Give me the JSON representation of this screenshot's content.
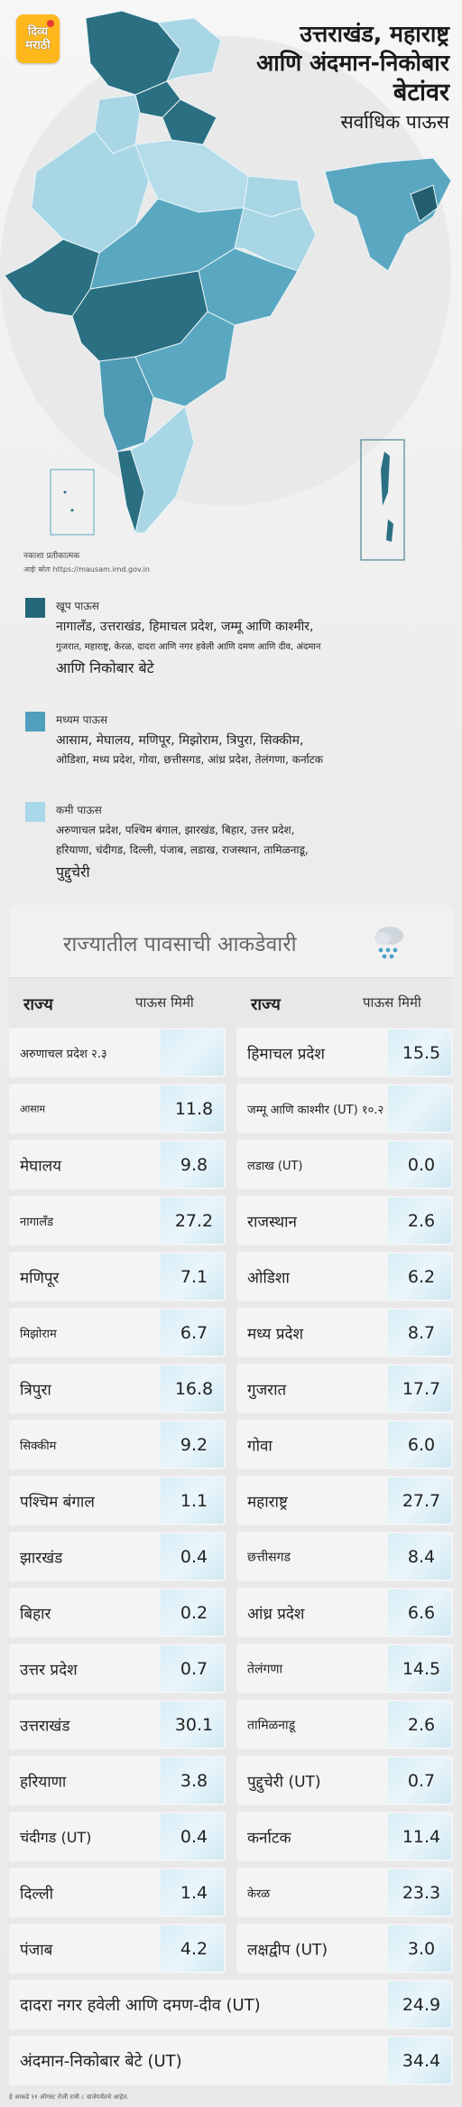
{
  "logo": {
    "line1": "दिव्य",
    "line2": "मराठी"
  },
  "header": {
    "title_line1": "उत्तराखंड, महाराष्ट्र",
    "title_line2": "आणि अंदमान-निकोबार",
    "title_line3": "बेटांवर",
    "subtitle": "सर्वाधिक पाऊस"
  },
  "map": {
    "note": "नकाशा प्रतीकात्मक",
    "source": "आईः स्रोतः https://mausam.imd.gov.in",
    "colors": {
      "heavy": "#2a6f82",
      "medium": "#5aa7c1",
      "low": "#a9d6e5",
      "heavy_dark": "#245f70"
    }
  },
  "legend": [
    {
      "name": "खूप पाऊस",
      "color": "#236779",
      "lines": [
        "नागालँड, उत्तराखंड, हिमाचल प्रदेश, जम्मू आणि काश्मीर,",
        "गुजरात, महाराष्ट्र, केरळ, दादरा आणि नगर हवेली आणि दमण आणि दीव, अंदमान",
        "आणि निकोबार बेटे"
      ]
    },
    {
      "name": "मध्यम पाऊस",
      "color": "#4f9fbd",
      "lines": [
        "आसाम, मेघालय, मणिपूर, मिझोराम, त्रिपुरा, सिक्कीम,",
        "ओडिशा, मध्य प्रदेश, गोवा, छत्तीसगड, आंध्र प्रदेश, तेलंगणा, कर्नाटक"
      ]
    },
    {
      "name": "कमी पाऊस",
      "color": "#a8d8ea",
      "lines": [
        "अरुणाचल प्रदेश, पश्चिम बंगाल, झारखंड, बिहार, उत्तर प्रदेश,",
        "हरियाणा, चंदीगड, दिल्ली, पंजाब, लडाख, राजस्थान, तामिळनाडू,",
        "पुद्दुचेरी"
      ]
    }
  ],
  "table": {
    "title": "राज्यातील पावसाची आकडेवारी",
    "col_state": "राज्य",
    "col_rain": "पाऊस मिमी",
    "left": [
      {
        "state": "अरुणाचल प्रदेश २.३",
        "value": ""
      },
      {
        "state": "आसाम",
        "value": "11.8"
      },
      {
        "state": "मेघालय",
        "value": "9.8"
      },
      {
        "state": "नागालँड",
        "value": "27.2"
      },
      {
        "state": "मणिपूर",
        "value": "7.1"
      },
      {
        "state": "मिझोराम",
        "value": "6.7"
      },
      {
        "state": "त्रिपुरा",
        "value": "16.8"
      },
      {
        "state": "सिक्कीम",
        "value": "9.2"
      },
      {
        "state": "पश्चिम बंगाल",
        "value": "1.1"
      },
      {
        "state": "झारखंड",
        "value": "0.4"
      },
      {
        "state": "बिहार",
        "value": "0.2"
      },
      {
        "state": "उत्तर प्रदेश",
        "value": "0.7"
      },
      {
        "state": "उत्तराखंड",
        "value": "30.1"
      },
      {
        "state": "हरियाणा",
        "value": "3.8"
      },
      {
        "state": "चंदीगड (UT)",
        "value": "0.4"
      },
      {
        "state": "दिल्ली",
        "value": "1.4"
      },
      {
        "state": "पंजाब",
        "value": "4.2"
      }
    ],
    "right": [
      {
        "state": "हिमाचल प्रदेश",
        "value": "15.5"
      },
      {
        "state": "जम्मू आणि काश्मीर (UT) १०.२",
        "value": ""
      },
      {
        "state": "लडाख (UT)",
        "value": "0.0"
      },
      {
        "state": "राजस्थान",
        "value": "2.6"
      },
      {
        "state": "ओडिशा",
        "value": "6.2"
      },
      {
        "state": "मध्य प्रदेश",
        "value": "8.7"
      },
      {
        "state": "गुजरात",
        "value": "17.7"
      },
      {
        "state": "गोवा",
        "value": "6.0"
      },
      {
        "state": "महाराष्ट्र",
        "value": "27.7"
      },
      {
        "state": "छत्तीसगड",
        "value": "8.4"
      },
      {
        "state": "आंध्र प्रदेश",
        "value": "6.6"
      },
      {
        "state": "तेलंगणा",
        "value": "14.5"
      },
      {
        "state": "तामिळनाडू",
        "value": "2.6"
      },
      {
        "state": "पुद्दुचेरी (UT)",
        "value": "0.7"
      },
      {
        "state": "कर्नाटक",
        "value": "11.4"
      },
      {
        "state": "केरळ",
        "value": "23.3"
      },
      {
        "state": "लक्षद्वीप (UT)",
        "value": "3.0"
      }
    ],
    "wide": [
      {
        "state": "दादरा नगर हवेली आणि दमण-दीव (UT)",
        "value": "24.9"
      },
      {
        "state": "अंदमान-निकोबार बेटे (UT)",
        "value": "34.4"
      }
    ]
  },
  "footnote": "हे आकडे ११ ऑगस्ट रोजी रात्री ८ वाजेपर्यंतचे आहेत."
}
